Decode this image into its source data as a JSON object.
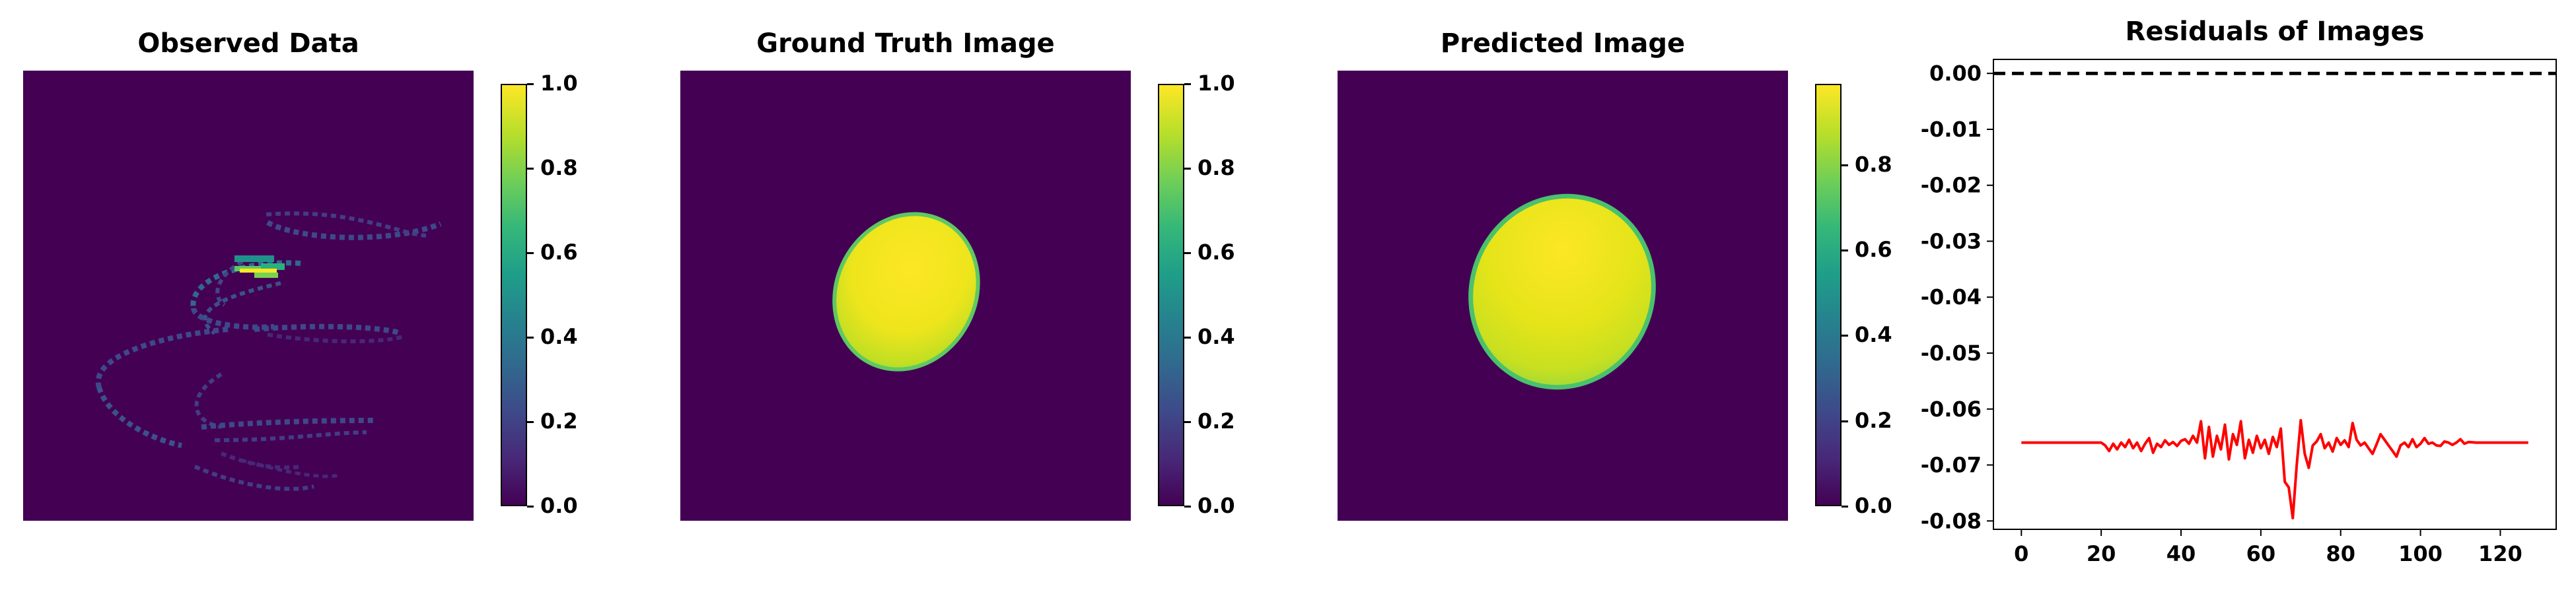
{
  "panels": {
    "observed": {
      "title": "Observed Data",
      "colorbar_ticks": [
        "0.0",
        "0.2",
        "0.4",
        "0.6",
        "0.8",
        "1.0"
      ],
      "colorbar_range": [
        0.0,
        1.0
      ]
    },
    "ground_truth": {
      "title": "Ground Truth Image",
      "colorbar_ticks": [
        "0.0",
        "0.2",
        "0.4",
        "0.6",
        "0.8",
        "1.0"
      ],
      "colorbar_range": [
        0.0,
        1.0
      ]
    },
    "predicted": {
      "title": "Predicted Image",
      "colorbar_ticks": [
        "0.0",
        "0.2",
        "0.4",
        "0.6",
        "0.8"
      ],
      "colorbar_range": [
        0.0,
        0.99
      ]
    },
    "residuals": {
      "title": "Residuals of Images"
    }
  },
  "colors": {
    "background": "#440154",
    "ellipse": "#f4e626",
    "residual_line": "#ff0000",
    "reference_line": "#000000"
  },
  "colormap": "viridis",
  "chart_data": {
    "type": "line",
    "title": "Residuals of Images",
    "xlabel": "",
    "ylabel": "",
    "xlim": [
      -7,
      134
    ],
    "ylim": [
      -0.0815,
      0.0025
    ],
    "xticks": [
      0,
      20,
      40,
      60,
      80,
      100,
      120
    ],
    "yticks": [
      0.0,
      -0.01,
      -0.02,
      -0.03,
      -0.04,
      -0.05,
      -0.06,
      -0.07,
      -0.08
    ],
    "ytick_labels": [
      "0.00",
      "-0.01",
      "-0.02",
      "-0.03",
      "-0.04",
      "-0.05",
      "-0.06",
      "-0.07",
      "-0.08"
    ],
    "reference_line": {
      "y": 0.0,
      "style": "dashed",
      "color": "#000000"
    },
    "series": [
      {
        "color": "#ff0000",
        "x": [
          0,
          2,
          4,
          6,
          8,
          10,
          12,
          14,
          16,
          18,
          20,
          21,
          22,
          23,
          24,
          25,
          26,
          27,
          28,
          29,
          30,
          31,
          32,
          33,
          34,
          35,
          36,
          37,
          38,
          39,
          40,
          41,
          42,
          43,
          44,
          45,
          46,
          47,
          48,
          49,
          50,
          51,
          52,
          53,
          54,
          55,
          56,
          57,
          58,
          59,
          60,
          61,
          62,
          63,
          64,
          65,
          66,
          67,
          68,
          69,
          70,
          71,
          72,
          73,
          74,
          75,
          76,
          77,
          78,
          79,
          80,
          81,
          82,
          83,
          84,
          85,
          86,
          87,
          88,
          89,
          90,
          91,
          92,
          93,
          94,
          95,
          96,
          97,
          98,
          99,
          100,
          101,
          102,
          103,
          104,
          105,
          106,
          107,
          108,
          109,
          110,
          111,
          112,
          114,
          116,
          118,
          120,
          122,
          124,
          126,
          127
        ],
        "y": [
          -0.066,
          -0.066,
          -0.066,
          -0.066,
          -0.066,
          -0.066,
          -0.066,
          -0.066,
          -0.066,
          -0.066,
          -0.066,
          -0.0665,
          -0.0675,
          -0.0662,
          -0.0672,
          -0.066,
          -0.0668,
          -0.0655,
          -0.067,
          -0.066,
          -0.0675,
          -0.0662,
          -0.0652,
          -0.0678,
          -0.0662,
          -0.0668,
          -0.0656,
          -0.0664,
          -0.0659,
          -0.0666,
          -0.0657,
          -0.0654,
          -0.0662,
          -0.0648,
          -0.066,
          -0.0622,
          -0.0688,
          -0.0632,
          -0.0685,
          -0.0648,
          -0.0672,
          -0.0628,
          -0.069,
          -0.0645,
          -0.0664,
          -0.0622,
          -0.0688,
          -0.0655,
          -0.0678,
          -0.0648,
          -0.067,
          -0.0655,
          -0.068,
          -0.065,
          -0.0668,
          -0.0635,
          -0.073,
          -0.074,
          -0.0795,
          -0.07,
          -0.062,
          -0.068,
          -0.0705,
          -0.0665,
          -0.0658,
          -0.0645,
          -0.067,
          -0.066,
          -0.0676,
          -0.0652,
          -0.0664,
          -0.0656,
          -0.0668,
          -0.0625,
          -0.0655,
          -0.0665,
          -0.066,
          -0.067,
          -0.068,
          -0.0663,
          -0.0645,
          -0.0655,
          -0.0665,
          -0.0675,
          -0.0685,
          -0.0665,
          -0.066,
          -0.0668,
          -0.0654,
          -0.0668,
          -0.0662,
          -0.0652,
          -0.0662,
          -0.066,
          -0.0665,
          -0.0666,
          -0.0658,
          -0.066,
          -0.0664,
          -0.066,
          -0.0654,
          -0.0662,
          -0.0659,
          -0.066,
          -0.066,
          -0.066,
          -0.066,
          -0.066,
          -0.066,
          -0.066,
          -0.066
        ]
      }
    ]
  }
}
